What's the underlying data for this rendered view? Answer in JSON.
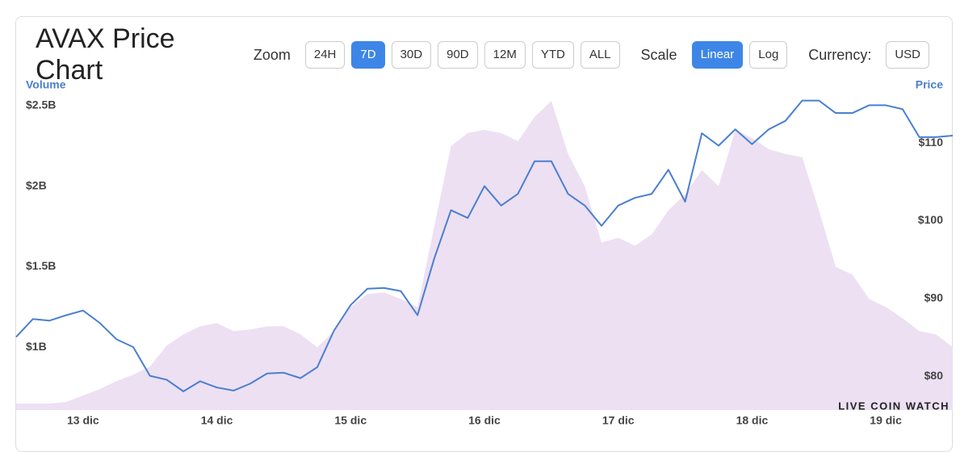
{
  "header": {
    "title": "AVAX Price Chart",
    "zoom_label": "Zoom",
    "zoom_options": [
      "24H",
      "7D",
      "30D",
      "90D",
      "12M",
      "YTD",
      "ALL"
    ],
    "zoom_active": "7D",
    "scale_label": "Scale",
    "scale_options": [
      "Linear",
      "Log"
    ],
    "scale_active": "Linear",
    "currency_label": "Currency:",
    "currency": "USD"
  },
  "watermark": "LIVE COIN WATCH",
  "chart_data": {
    "type": "area-line",
    "y_label": "Volume",
    "y2_label": "Price",
    "categories": [
      null,
      null,
      null,
      null,
      "13 dic",
      null,
      null,
      null,
      null,
      null,
      null,
      null,
      "14 dic",
      null,
      null,
      null,
      null,
      null,
      null,
      null,
      "15 dic",
      null,
      null,
      null,
      null,
      null,
      null,
      null,
      "16 dic",
      null,
      null,
      null,
      null,
      null,
      null,
      null,
      "17 dic",
      null,
      null,
      null,
      null,
      null,
      null,
      null,
      "18 dic",
      null,
      null,
      null,
      null,
      null,
      null,
      null,
      "19 dic",
      null,
      null,
      null,
      null
    ],
    "ylim": [
      0.61,
      2.58
    ],
    "yticks": [
      {
        "value": 1,
        "label": "$1B"
      },
      {
        "value": 1.5,
        "label": "$1.5B"
      },
      {
        "value": 2,
        "label": "$2B"
      },
      {
        "value": 2.5,
        "label": "$2.5B"
      }
    ],
    "y2lim": [
      76.8,
      117.6
    ],
    "y2ticks": [
      {
        "value": 80,
        "label": "$80"
      },
      {
        "value": 90,
        "label": "$90"
      },
      {
        "value": 100,
        "label": "$100"
      },
      {
        "value": 110,
        "label": "$110"
      }
    ],
    "series": [
      {
        "name": "Volume",
        "color": "#ede0f3",
        "kind": "area",
        "values": [
          0.65,
          0.65,
          0.65,
          0.66,
          0.7,
          0.74,
          0.79,
          0.83,
          0.88,
          1.01,
          1.08,
          1.13,
          1.15,
          1.1,
          1.11,
          1.13,
          1.13,
          1.08,
          1.0,
          1.1,
          1.25,
          1.33,
          1.34,
          1.3,
          1.25,
          1.75,
          2.25,
          2.33,
          2.35,
          2.33,
          2.28,
          2.43,
          2.53,
          2.2,
          2.0,
          1.65,
          1.68,
          1.63,
          1.7,
          1.85,
          1.95,
          2.1,
          2.0,
          2.35,
          2.3,
          2.23,
          2.2,
          2.18,
          1.85,
          1.5,
          1.45,
          1.3,
          1.25,
          1.18,
          1.1,
          1.08,
          1.0
        ]
      },
      {
        "name": "Price",
        "color": "#4a7fcf",
        "kind": "line",
        "axis": "y2",
        "values": [
          86.2,
          88.5,
          88.3,
          89.0,
          89.6,
          88.0,
          85.9,
          84.9,
          81.2,
          80.7,
          79.2,
          80.5,
          79.7,
          79.3,
          80.2,
          81.5,
          81.6,
          80.9,
          82.3,
          87.0,
          90.3,
          92.4,
          92.5,
          92.1,
          89.0,
          96.3,
          102.5,
          101.5,
          105.6,
          103.1,
          104.6,
          108.8,
          108.8,
          104.6,
          103.1,
          100.5,
          103.1,
          104.1,
          104.6,
          107.7,
          103.6,
          112.4,
          110.8,
          112.9,
          111.0,
          112.9,
          114.0,
          116.6,
          116.6,
          115.0,
          115.0,
          116.0,
          116.0,
          115.5,
          111.9,
          111.9,
          112.1
        ]
      }
    ]
  }
}
